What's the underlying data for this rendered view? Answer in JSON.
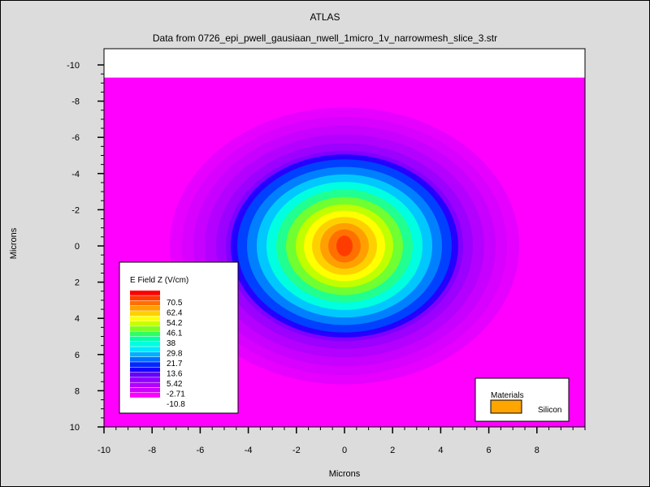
{
  "window": {
    "title": "ATLAS",
    "subtitle": "Data from 0726_epi_pwell_gausiaan_nwell_1micro_1v_narrowmesh_slice_3.str"
  },
  "chart_data": {
    "type": "heatmap",
    "xlabel": "Microns",
    "ylabel": "Microns",
    "xlim": [
      -10,
      10
    ],
    "ylim": [
      -10,
      10
    ],
    "y_inverted": true,
    "xticks": [
      -10,
      -8,
      -6,
      -4,
      -2,
      0,
      2,
      4,
      6,
      8
    ],
    "yticks": [
      -10,
      -8,
      -6,
      -4,
      -2,
      0,
      2,
      4,
      6,
      8,
      10
    ],
    "surface_top": -9.3,
    "peak": {
      "x": 0,
      "y": 0,
      "value": 70.5
    },
    "rx_per_unit": 0.1315,
    "ry_per_unit": 0.1027,
    "background_value": -10.8,
    "legend": {
      "title": "E Field Z (V/cm)",
      "position": "bottom-left",
      "labels": [
        "70.5",
        "62.4",
        "54.2",
        "46.1",
        "38",
        "29.8",
        "21.7",
        "13.6",
        "5.42",
        "-2.71",
        "-10.8"
      ],
      "colors": [
        "#ff0000",
        "#ff3c00",
        "#ff7000",
        "#ffa000",
        "#ffd000",
        "#ffff00",
        "#c8ff00",
        "#7cff20",
        "#30ff60",
        "#00ffa8",
        "#00ffe0",
        "#00e8ff",
        "#00b0ff",
        "#0070ff",
        "#0028ff",
        "#1800ff",
        "#6400ff",
        "#9000ff",
        "#b000ff",
        "#d000ff",
        "#ff00ff"
      ]
    },
    "materials": {
      "title": "Materials",
      "items": [
        {
          "name": "Silicon",
          "color": "#ffa500"
        }
      ]
    }
  }
}
